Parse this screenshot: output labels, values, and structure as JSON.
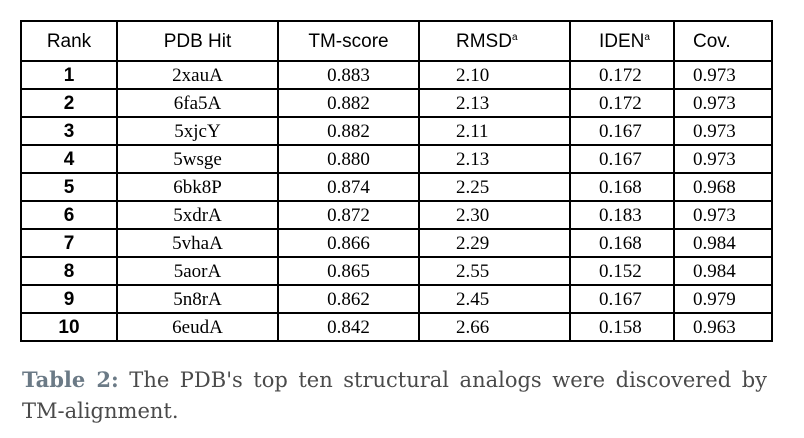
{
  "table": {
    "headers": {
      "rank": "Rank",
      "pdb_hit": "PDB Hit",
      "tm_score": "TM-score",
      "rmsd": "RMSD",
      "rmsd_note": "a",
      "iden": "IDEN",
      "iden_note": "a",
      "cov": "Cov."
    },
    "rows": [
      {
        "rank": "1",
        "pdb_hit": "2xauA",
        "tm_score": "0.883",
        "rmsd": "2.10",
        "iden": "0.172",
        "cov": "0.973"
      },
      {
        "rank": "2",
        "pdb_hit": "6fa5A",
        "tm_score": "0.882",
        "rmsd": "2.13",
        "iden": "0.172",
        "cov": "0.973"
      },
      {
        "rank": "3",
        "pdb_hit": "5xjcY",
        "tm_score": "0.882",
        "rmsd": "2.11",
        "iden": "0.167",
        "cov": "0.973"
      },
      {
        "rank": "4",
        "pdb_hit": "5wsge",
        "tm_score": "0.880",
        "rmsd": "2.13",
        "iden": "0.167",
        "cov": "0.973"
      },
      {
        "rank": "5",
        "pdb_hit": "6bk8P",
        "tm_score": "0.874",
        "rmsd": "2.25",
        "iden": "0.168",
        "cov": "0.968"
      },
      {
        "rank": "6",
        "pdb_hit": "5xdrA",
        "tm_score": "0.872",
        "rmsd": "2.30",
        "iden": "0.183",
        "cov": "0.973"
      },
      {
        "rank": "7",
        "pdb_hit": "5vhaA",
        "tm_score": "0.866",
        "rmsd": "2.29",
        "iden": "0.168",
        "cov": "0.984"
      },
      {
        "rank": "8",
        "pdb_hit": "5aorA",
        "tm_score": "0.865",
        "rmsd": "2.55",
        "iden": "0.152",
        "cov": "0.984"
      },
      {
        "rank": "9",
        "pdb_hit": "5n8rA",
        "tm_score": "0.862",
        "rmsd": "2.45",
        "iden": "0.167",
        "cov": "0.979"
      },
      {
        "rank": "10",
        "pdb_hit": "6eudA",
        "tm_score": "0.842",
        "rmsd": "2.66",
        "iden": "0.158",
        "cov": "0.963"
      }
    ]
  },
  "caption": {
    "label": "Table 2:",
    "text": " The PDB's top ten structural analogs were discovered by TM-alignment."
  }
}
